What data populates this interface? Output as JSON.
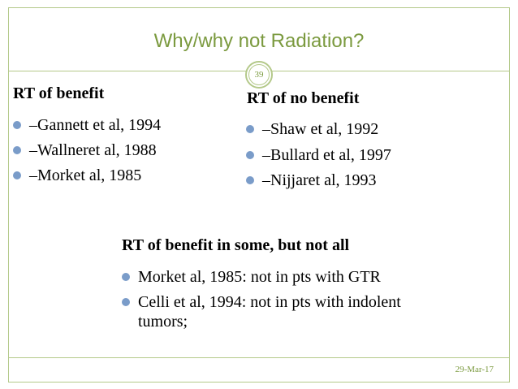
{
  "slide": {
    "title": "Why/why not Radiation?",
    "slide_number": "39",
    "date": "29-Mar-17"
  },
  "left_column": {
    "heading": "RT of benefit",
    "items": [
      "–Gannett et al, 1994",
      "–Wallneret al, 1988",
      "–Morket al, 1985"
    ]
  },
  "right_column": {
    "heading": "RT of no benefit",
    "items": [
      "–Shaw et al, 1992",
      "–Bullard et al, 1997",
      "–Nijjaret al, 1993"
    ]
  },
  "bottom_section": {
    "heading": "RT of benefit in some, but not all",
    "items": [
      "Morket al, 1985: not in pts with GTR",
      "Celli et al, 1994: not in pts with indolent tumors;"
    ]
  },
  "colors": {
    "accent_green": "#7b9a3f",
    "border_green": "#b4c98a",
    "bullet_blue": "#7a9cc9"
  }
}
